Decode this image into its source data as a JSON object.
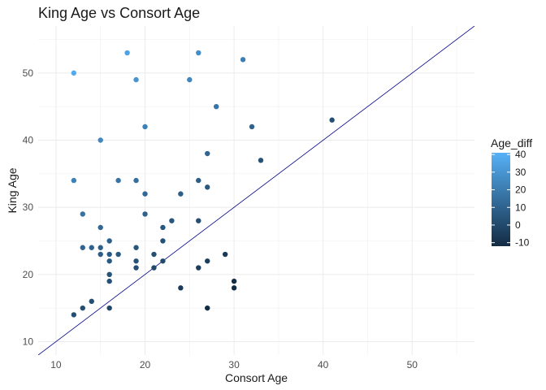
{
  "chart_data": {
    "type": "scatter",
    "title": "King Age vs Consort Age",
    "xlabel": "Consort Age",
    "ylabel": "King Age",
    "xlim": [
      8,
      57
    ],
    "ylim": [
      8,
      57
    ],
    "x_ticks": [
      10,
      20,
      30,
      40,
      50
    ],
    "y_ticks": [
      10,
      20,
      30,
      40,
      50
    ],
    "grid": true,
    "reference_line": {
      "type": "y=x"
    },
    "color_by": "Age_diff",
    "legend": {
      "title": "Age_diff",
      "placement": "right",
      "range": [
        -12,
        41
      ],
      "ticks": [
        40,
        30,
        20,
        10,
        0,
        -10
      ],
      "colors": {
        "low": "#132B43",
        "high": "#56B1F7"
      }
    },
    "points": [
      {
        "x": 12,
        "y": 50
      },
      {
        "x": 18,
        "y": 53
      },
      {
        "x": 26,
        "y": 53
      },
      {
        "x": 31,
        "y": 52
      },
      {
        "x": 19,
        "y": 49
      },
      {
        "x": 25,
        "y": 49
      },
      {
        "x": 28,
        "y": 45
      },
      {
        "x": 41,
        "y": 43
      },
      {
        "x": 20,
        "y": 42
      },
      {
        "x": 32,
        "y": 42
      },
      {
        "x": 15,
        "y": 40
      },
      {
        "x": 27,
        "y": 38
      },
      {
        "x": 33,
        "y": 37
      },
      {
        "x": 12,
        "y": 34
      },
      {
        "x": 17,
        "y": 34
      },
      {
        "x": 19,
        "y": 34
      },
      {
        "x": 26,
        "y": 34
      },
      {
        "x": 27,
        "y": 33
      },
      {
        "x": 20,
        "y": 32
      },
      {
        "x": 24,
        "y": 32
      },
      {
        "x": 13,
        "y": 29
      },
      {
        "x": 20,
        "y": 29
      },
      {
        "x": 23,
        "y": 28
      },
      {
        "x": 26,
        "y": 28
      },
      {
        "x": 15,
        "y": 27
      },
      {
        "x": 22,
        "y": 27
      },
      {
        "x": 16,
        "y": 25
      },
      {
        "x": 22,
        "y": 25
      },
      {
        "x": 13,
        "y": 24
      },
      {
        "x": 14,
        "y": 24
      },
      {
        "x": 15,
        "y": 24
      },
      {
        "x": 19,
        "y": 24
      },
      {
        "x": 15,
        "y": 23
      },
      {
        "x": 16,
        "y": 23
      },
      {
        "x": 17,
        "y": 23
      },
      {
        "x": 21,
        "y": 23
      },
      {
        "x": 29,
        "y": 23
      },
      {
        "x": 16,
        "y": 22
      },
      {
        "x": 19,
        "y": 22
      },
      {
        "x": 22,
        "y": 22
      },
      {
        "x": 27,
        "y": 22
      },
      {
        "x": 19,
        "y": 21
      },
      {
        "x": 21,
        "y": 21
      },
      {
        "x": 26,
        "y": 21
      },
      {
        "x": 16,
        "y": 20
      },
      {
        "x": 16,
        "y": 19
      },
      {
        "x": 30,
        "y": 19
      },
      {
        "x": 24,
        "y": 18
      },
      {
        "x": 30,
        "y": 18
      },
      {
        "x": 14,
        "y": 16
      },
      {
        "x": 13,
        "y": 15
      },
      {
        "x": 16,
        "y": 15
      },
      {
        "x": 27,
        "y": 15
      },
      {
        "x": 12,
        "y": 14
      }
    ]
  }
}
